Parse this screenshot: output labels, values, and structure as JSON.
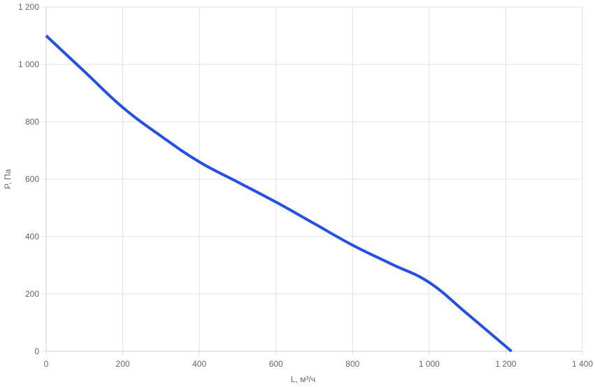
{
  "chart_data": {
    "type": "line",
    "xlabel": "L, м³/ч",
    "ylabel": "P, Па",
    "xlim": [
      0,
      1400
    ],
    "ylim": [
      0,
      1200
    ],
    "x_ticks": [
      0,
      200,
      400,
      600,
      800,
      1000,
      1200,
      1400
    ],
    "y_ticks": [
      0,
      200,
      400,
      600,
      800,
      1000,
      1200
    ],
    "x_tick_labels": [
      "0",
      "200",
      "400",
      "600",
      "800",
      "1 000",
      "1 200",
      "1 400"
    ],
    "y_tick_labels": [
      "0",
      "200",
      "400",
      "600",
      "800",
      "1 000",
      "1 200"
    ],
    "grid": true,
    "series": [
      {
        "color": "#2250e8",
        "x": [
          0,
          100,
          200,
          300,
          400,
          500,
          600,
          700,
          800,
          900,
          1000,
          1100,
          1215
        ],
        "y": [
          1100,
          975,
          850,
          750,
          660,
          590,
          520,
          445,
          370,
          305,
          240,
          130,
          0
        ]
      }
    ]
  }
}
